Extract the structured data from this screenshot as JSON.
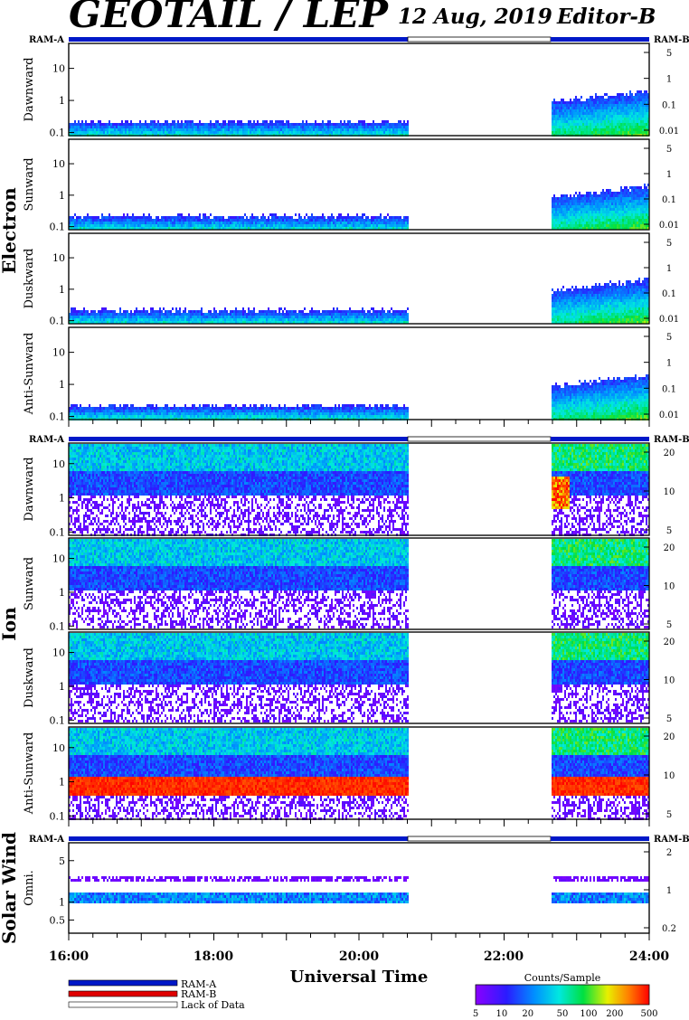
{
  "header": {
    "title": "GEOTAIL / LEP",
    "date": "12 Aug, 2019",
    "editor": "Editor-B"
  },
  "ram_labels": {
    "left": "RAM-A",
    "right": "RAM-B"
  },
  "groups": [
    {
      "name": "Electron",
      "panels": [
        "Dawnward",
        "Sunward",
        "Duskward",
        "Anti-Sunward"
      ]
    },
    {
      "name": "Ion",
      "panels": [
        "Dawnward",
        "Sunward",
        "Duskward",
        "Anti-Sunward"
      ]
    },
    {
      "name": "Solar Wind",
      "panels": [
        "Omni."
      ]
    }
  ],
  "axes": {
    "electron_left_ticks": [
      "10",
      "1",
      "0.1"
    ],
    "electron_right_ticks": [
      "5",
      "1",
      "0.1",
      "0.01"
    ],
    "ion_left_ticks": [
      "10",
      "1",
      "0.1"
    ],
    "ion_right_ticks": [
      "20",
      "10",
      "5"
    ],
    "sw_left_ticks": [
      "5",
      "1",
      "0.5"
    ],
    "sw_right_ticks": [
      "2",
      "1",
      "0.2"
    ]
  },
  "x_axis": {
    "label": "Universal Time",
    "range": [
      16,
      24
    ],
    "ticks": [
      "16:00",
      "18:00",
      "20:00",
      "22:00",
      "24:00"
    ]
  },
  "legend": {
    "items": [
      {
        "label": "RAM-A",
        "color": "#0018c8"
      },
      {
        "label": "RAM-B",
        "color": "#e00000"
      },
      {
        "label": "Lack of Data",
        "color": "#ffffff"
      }
    ]
  },
  "colorbar": {
    "title": "Counts/Sample",
    "ticks": [
      "5",
      "10",
      "20",
      "50",
      "100",
      "200",
      "500"
    ],
    "range": [
      5,
      500
    ],
    "scale": "log"
  },
  "chart_data": {
    "type": "heatmap",
    "title": "GEOTAIL / LEP",
    "xlabel": "Universal Time",
    "x_unit": "hours UT",
    "xlim": [
      16,
      24
    ],
    "data_coverage": [
      {
        "start": 16.0,
        "end": 20.67
      },
      {
        "start": 22.63,
        "end": 24.0
      }
    ],
    "ram_a_intervals": [
      {
        "start": 16.0,
        "end": 20.67
      },
      {
        "start": 22.63,
        "end": 24.0
      }
    ],
    "lack_of_data": [
      {
        "start": 20.67,
        "end": 22.63
      }
    ],
    "colorscale": {
      "label": "Counts/Sample",
      "min": 5,
      "max": 500,
      "log": true
    },
    "panels": [
      {
        "group": "Electron",
        "name": "Dawnward",
        "ylim": [
          0.08,
          60
        ],
        "log": true
      },
      {
        "group": "Electron",
        "name": "Sunward",
        "ylim": [
          0.08,
          60
        ],
        "log": true
      },
      {
        "group": "Electron",
        "name": "Duskward",
        "ylim": [
          0.08,
          60
        ],
        "log": true
      },
      {
        "group": "Electron",
        "name": "Anti-Sunward",
        "ylim": [
          0.08,
          60
        ],
        "log": true
      },
      {
        "group": "Ion",
        "name": "Dawnward",
        "ylim": [
          0.08,
          40
        ],
        "log": true
      },
      {
        "group": "Ion",
        "name": "Sunward",
        "ylim": [
          0.08,
          40
        ],
        "log": true
      },
      {
        "group": "Ion",
        "name": "Duskward",
        "ylim": [
          0.08,
          40
        ],
        "log": true
      },
      {
        "group": "Ion",
        "name": "Anti-Sunward",
        "ylim": [
          0.08,
          40
        ],
        "log": true
      },
      {
        "group": "Solar Wind",
        "name": "Omni.",
        "ylim": [
          0.3,
          10
        ],
        "log": true
      }
    ]
  }
}
